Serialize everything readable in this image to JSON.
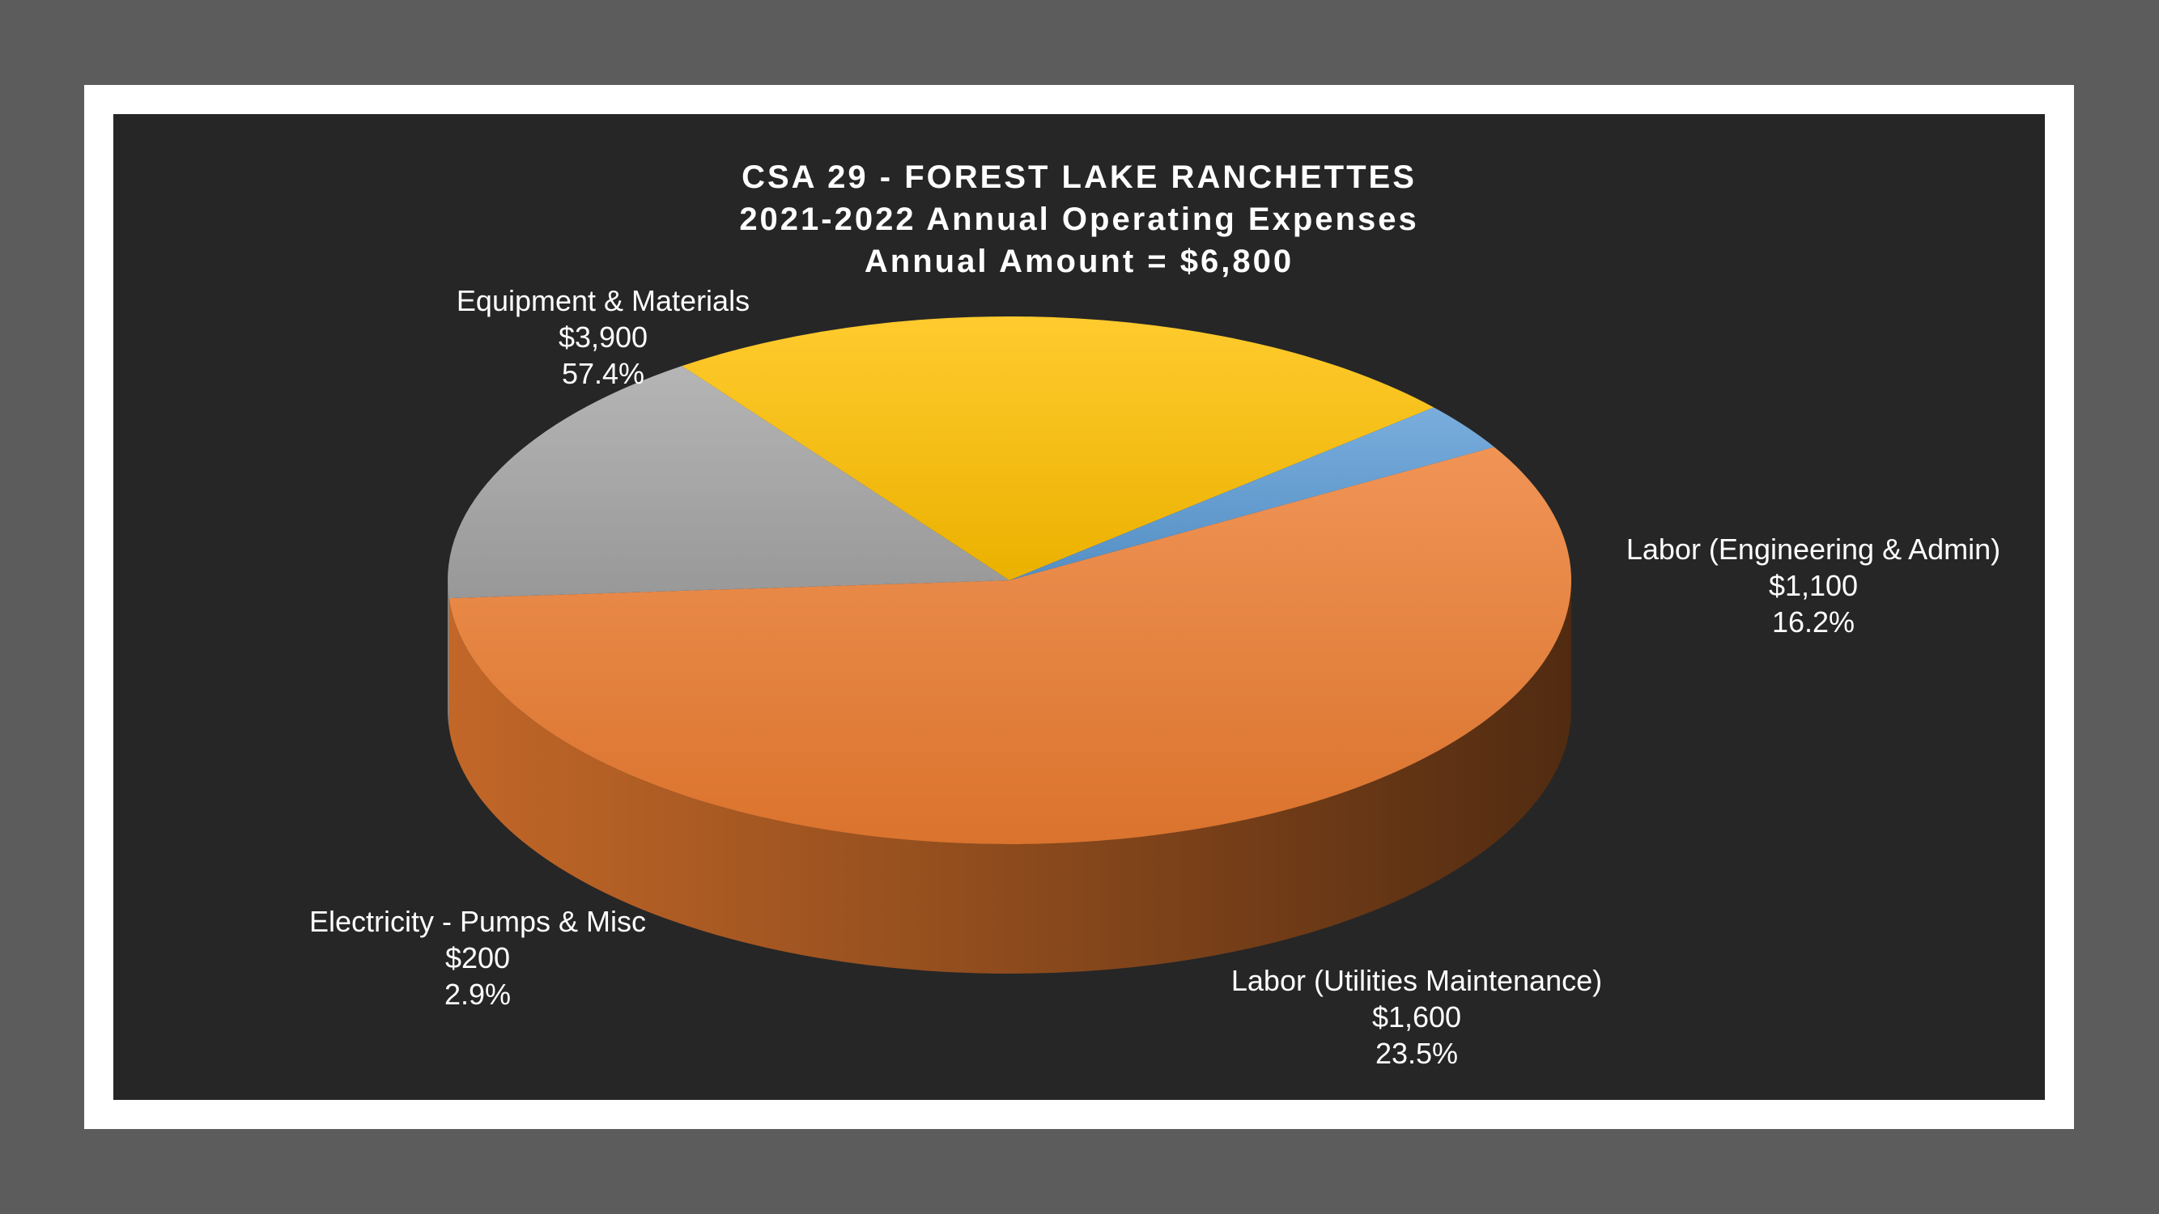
{
  "chart_data": {
    "type": "pie",
    "title_lines": [
      "CSA 29 - FOREST LAKE RANCHETTES",
      "2021-2022 Annual Operating Expenses",
      "Annual Amount = $6,800"
    ],
    "slices": [
      {
        "name": "Equipment & Materials",
        "value": 3900,
        "value_label": "$3,900",
        "percent_label": "57.4%",
        "color": "#ED7D31"
      },
      {
        "name": "Labor (Engineering & Admin)",
        "value": 1100,
        "value_label": "$1,100",
        "percent_label": "16.2%",
        "color": "#A5A5A5"
      },
      {
        "name": "Labor (Utilities Maintenance)",
        "value": 1600,
        "value_label": "$1,600",
        "percent_label": "23.5%",
        "color": "#FFC000"
      },
      {
        "name": "Electricity - Pumps & Misc",
        "value": 200,
        "value_label": "$200",
        "percent_label": "2.9%",
        "color": "#5B9BD5"
      }
    ]
  }
}
